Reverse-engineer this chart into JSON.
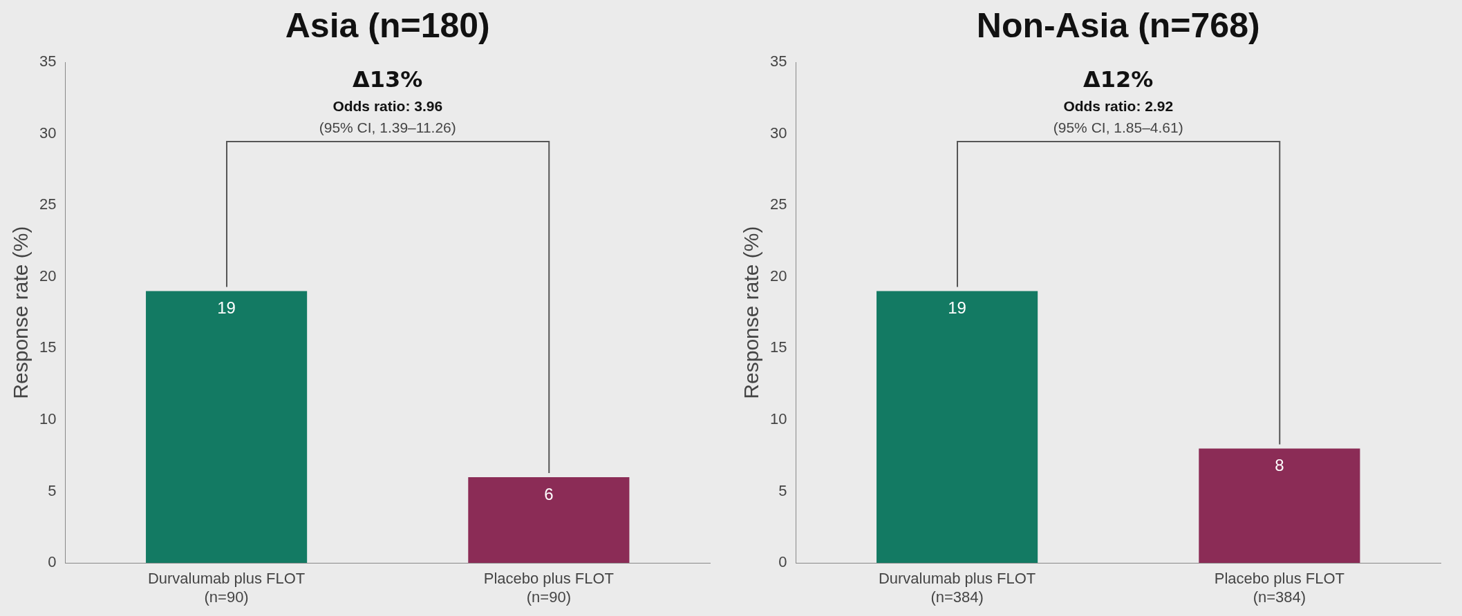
{
  "chart_data": [
    {
      "type": "bar",
      "title": "Asia (n=180)",
      "ylabel": "Response rate (%)",
      "categories": [
        "Durvalumab plus FLOT\n(n=90)",
        "Placebo plus FLOT\n(n=90)"
      ],
      "values": [
        19,
        6
      ],
      "colors": [
        "#137a63",
        "#8b2c56"
      ],
      "data_labels": true,
      "ylim": [
        0,
        35
      ],
      "yticks": [
        0,
        5,
        10,
        15,
        20,
        25,
        30,
        35
      ],
      "annotations": [
        "Δ13%",
        "Odds ratio: 3.96",
        "(95% CI, 1.39–11.26)"
      ]
    },
    {
      "type": "bar",
      "title": "Non-Asia (n=768)",
      "ylabel": "Response rate (%)",
      "categories": [
        "Durvalumab plus FLOT\n(n=384)",
        "Placebo plus FLOT\n(n=384)"
      ],
      "values": [
        19,
        8
      ],
      "colors": [
        "#137a63",
        "#8b2c56"
      ],
      "data_labels": true,
      "ylim": [
        0,
        35
      ],
      "yticks": [
        0,
        5,
        10,
        15,
        20,
        25,
        30,
        35
      ],
      "annotations": [
        "Δ12%",
        "Odds ratio: 2.92",
        "(95% CI, 1.85–4.61)"
      ]
    }
  ]
}
